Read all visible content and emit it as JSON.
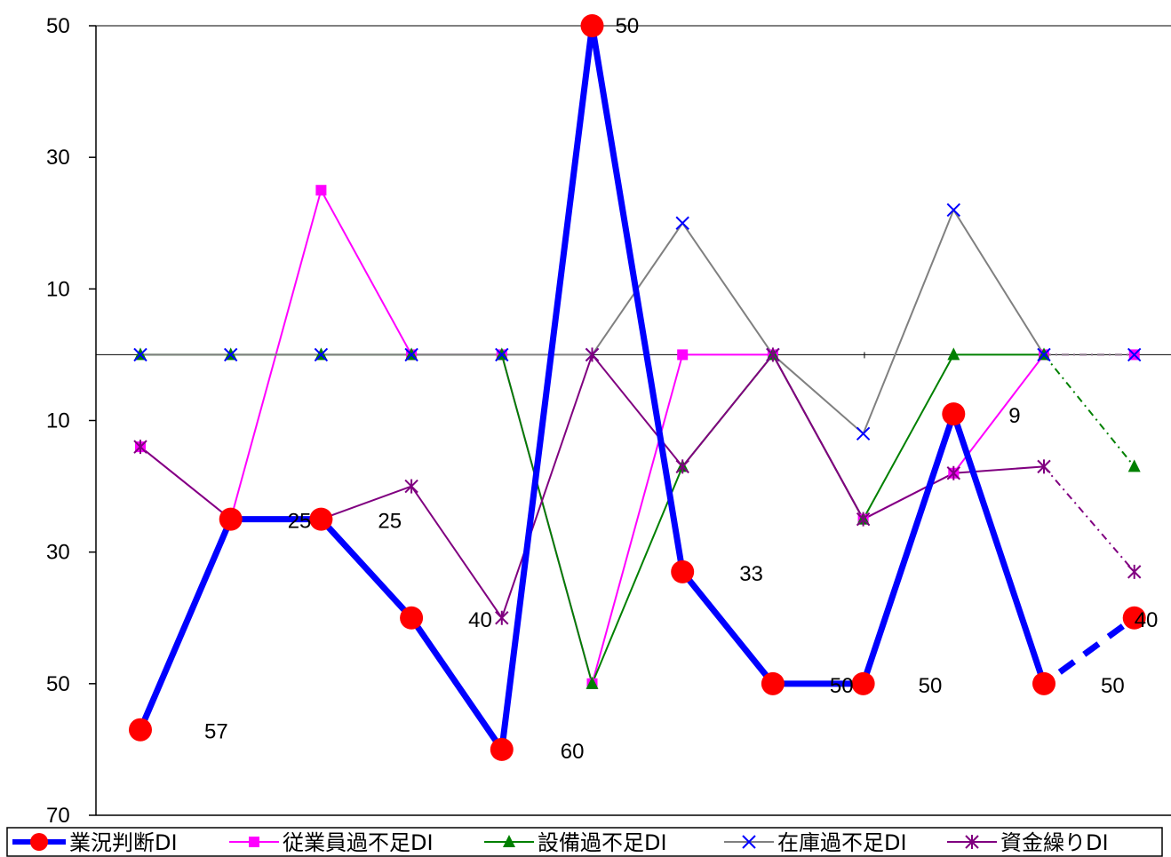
{
  "chart_data": {
    "type": "line",
    "title": "",
    "xlabel": "",
    "ylabel": "",
    "y_axis": {
      "ticks": [
        50,
        30,
        10,
        10,
        30,
        50,
        70
      ],
      "tick_values": [
        50,
        30,
        10,
        -10,
        -30,
        -50,
        -70
      ],
      "ylim": [
        -70,
        50
      ],
      "zero_line": true
    },
    "x_count": 12,
    "grid": false,
    "legend_position": "bottom",
    "series": [
      {
        "name": "業況判断DI",
        "color": "#0000ff",
        "marker": "circle",
        "marker_color": "#ff0000",
        "values": [
          -57,
          -25,
          -25,
          -40,
          -60,
          50,
          -33,
          -50,
          -50,
          -9,
          -50,
          -40
        ],
        "forecast_from_index": 10
      },
      {
        "name": "従業員過不足DI",
        "color": "#ff00ff",
        "marker": "square",
        "values": [
          -14,
          -25,
          25,
          0,
          0,
          -50,
          0,
          0,
          -25,
          -18,
          0,
          0
        ],
        "forecast_from_index": 10
      },
      {
        "name": "設備過不足DI",
        "color": "#008000",
        "marker": "triangle",
        "values": [
          0,
          0,
          0,
          0,
          0,
          -50,
          -17,
          0,
          -25,
          0,
          0,
          -17
        ],
        "forecast_from_index": 10
      },
      {
        "name": "在庫過不足DI",
        "color": "#808080",
        "marker": "x",
        "marker_color": "#0000ff",
        "values": [
          0,
          0,
          0,
          0,
          0,
          0,
          20,
          0,
          -12,
          22,
          0,
          0
        ],
        "forecast_from_index": 10
      },
      {
        "name": "資金繰りDI",
        "color": "#800080",
        "marker": "star",
        "values": [
          -14,
          -25,
          -25,
          -20,
          -40,
          0,
          -17,
          0,
          -25,
          -18,
          -17,
          -33
        ],
        "forecast_from_index": 10
      }
    ],
    "data_labels": [
      {
        "index": 0,
        "text": "57"
      },
      {
        "index": 1,
        "text": "25"
      },
      {
        "index": 2,
        "text": "25"
      },
      {
        "index": 3,
        "text": "40"
      },
      {
        "index": 4,
        "text": "60"
      },
      {
        "index": 5,
        "text": "50"
      },
      {
        "index": 6,
        "text": "33"
      },
      {
        "index": 7,
        "text": "50"
      },
      {
        "index": 8,
        "text": "50"
      },
      {
        "index": 9,
        "text": "9"
      },
      {
        "index": 10,
        "text": "50"
      },
      {
        "index": 11,
        "text": "40"
      }
    ]
  }
}
